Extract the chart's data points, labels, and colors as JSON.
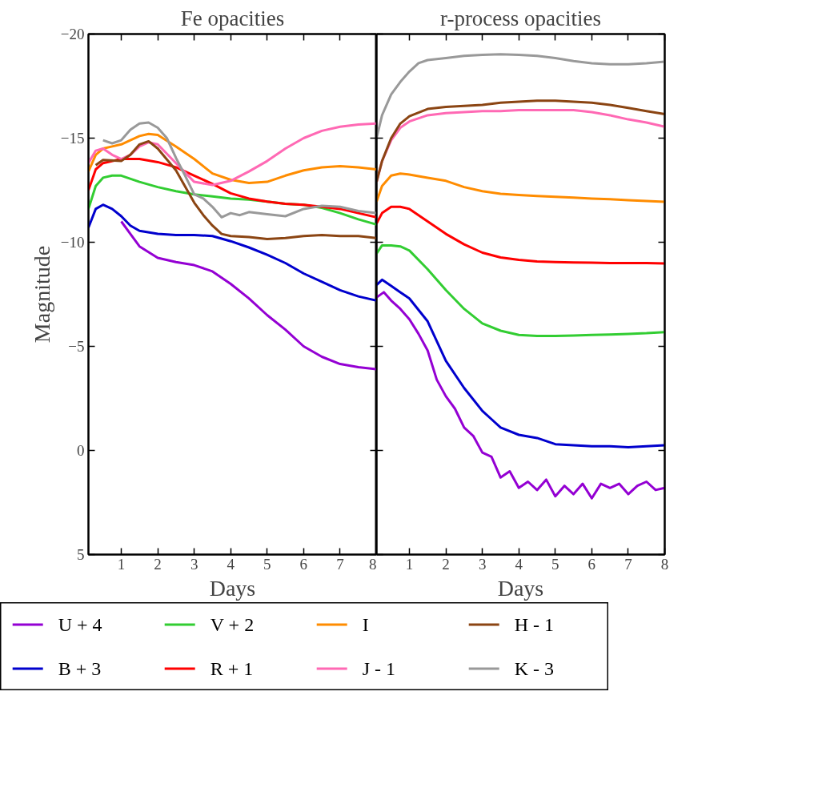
{
  "chart_data": [
    {
      "type": "line",
      "title": "Fe opacities",
      "xlabel": "Days",
      "ylabel": "Magnitude",
      "xlim": [
        0.1,
        8
      ],
      "xticks": [
        1,
        2,
        3,
        4,
        5,
        6,
        7,
        8
      ],
      "ylim": [
        5,
        -20
      ],
      "yticks": [
        {
          "value": -20,
          "label": "−20"
        },
        {
          "value": -15,
          "label": "−15"
        },
        {
          "value": -10,
          "label": "−10"
        },
        {
          "value": -5,
          "label": "−5"
        },
        {
          "value": 0,
          "label": "0"
        },
        {
          "value": 5,
          "label": "5"
        }
      ],
      "grid": false,
      "legend": "bottom",
      "line_style": "solid",
      "marker": "none",
      "series": [
        {
          "name": "U + 4",
          "color": "#9400d3",
          "x": [
            1,
            1.25,
            1.5,
            2,
            2.5,
            3,
            3.5,
            4,
            4.5,
            5,
            5.5,
            6,
            6.5,
            7,
            7.5,
            8
          ],
          "values": [
            -11.0,
            -10.4,
            -9.8,
            -9.25,
            -9.05,
            -8.9,
            -8.6,
            -8.0,
            -7.3,
            -6.5,
            -5.8,
            -5.0,
            -4.5,
            -4.15,
            -4.0,
            -3.9
          ]
        },
        {
          "name": "B + 3",
          "color": "#0000cd",
          "x": [
            0.1,
            0.3,
            0.5,
            0.75,
            1,
            1.25,
            1.5,
            2,
            2.5,
            3,
            3.5,
            4,
            4.5,
            5,
            5.5,
            6,
            6.5,
            7,
            7.5,
            8
          ],
          "values": [
            -10.7,
            -11.6,
            -11.8,
            -11.6,
            -11.25,
            -10.8,
            -10.55,
            -10.4,
            -10.35,
            -10.35,
            -10.3,
            -10.05,
            -9.75,
            -9.4,
            -9.0,
            -8.5,
            -8.1,
            -7.7,
            -7.4,
            -7.2
          ]
        },
        {
          "name": "V + 2",
          "color": "#32cd32",
          "x": [
            0.1,
            0.3,
            0.5,
            0.75,
            1,
            1.5,
            2,
            2.5,
            3,
            3.5,
            4,
            4.5,
            5,
            5.5,
            6,
            6.5,
            7,
            7.5,
            8
          ],
          "values": [
            -11.6,
            -12.7,
            -13.1,
            -13.2,
            -13.2,
            -12.9,
            -12.65,
            -12.45,
            -12.3,
            -12.2,
            -12.1,
            -12.05,
            -11.95,
            -11.85,
            -11.8,
            -11.65,
            -11.4,
            -11.1,
            -10.85
          ]
        },
        {
          "name": "R + 1",
          "color": "#ff0000",
          "x": [
            0.1,
            0.3,
            0.5,
            1,
            1.5,
            2,
            2.5,
            3,
            3.5,
            4,
            4.5,
            5,
            5.5,
            6,
            6.5,
            7,
            7.5,
            8
          ],
          "values": [
            -12.5,
            -13.5,
            -13.8,
            -14.0,
            -14.0,
            -13.85,
            -13.6,
            -13.2,
            -12.8,
            -12.35,
            -12.1,
            -11.95,
            -11.85,
            -11.8,
            -11.7,
            -11.6,
            -11.4,
            -11.2
          ]
        },
        {
          "name": "I",
          "color": "#ff8c00",
          "x": [
            0.1,
            0.3,
            0.5,
            0.75,
            1,
            1.5,
            1.75,
            2,
            2.5,
            3,
            3.5,
            4,
            4.5,
            5,
            5.5,
            6,
            6.5,
            7,
            7.5,
            8
          ],
          "values": [
            -13.4,
            -14.2,
            -14.5,
            -14.6,
            -14.7,
            -15.1,
            -15.2,
            -15.15,
            -14.6,
            -14.0,
            -13.3,
            -13.0,
            -12.85,
            -12.9,
            -13.2,
            -13.45,
            -13.6,
            -13.65,
            -13.6,
            -13.5
          ]
        },
        {
          "name": "J - 1",
          "color": "#ff69b4",
          "x": [
            0.1,
            0.3,
            0.5,
            0.75,
            1,
            1.25,
            1.5,
            1.75,
            2,
            2.5,
            3,
            3.5,
            4,
            4.5,
            5,
            5.5,
            6,
            6.5,
            7,
            7.5,
            8
          ],
          "values": [
            -13.8,
            -14.4,
            -14.5,
            -14.2,
            -14.0,
            -14.2,
            -14.6,
            -14.8,
            -14.7,
            -13.8,
            -12.9,
            -12.75,
            -12.95,
            -13.4,
            -13.9,
            -14.5,
            -15.0,
            -15.35,
            -15.55,
            -15.65,
            -15.7
          ]
        },
        {
          "name": "H - 1",
          "color": "#8b4513",
          "x": [
            0.3,
            0.5,
            1,
            1.25,
            1.5,
            1.75,
            2,
            2.5,
            3,
            3.25,
            3.5,
            3.75,
            4,
            4.5,
            5,
            5.5,
            6,
            6.5,
            7,
            7.5,
            8
          ],
          "values": [
            -13.7,
            -13.95,
            -13.9,
            -14.2,
            -14.7,
            -14.85,
            -14.5,
            -13.45,
            -11.9,
            -11.3,
            -10.8,
            -10.4,
            -10.3,
            -10.25,
            -10.15,
            -10.2,
            -10.3,
            -10.35,
            -10.3,
            -10.3,
            -10.2
          ]
        },
        {
          "name": "K - 3",
          "color": "#999999",
          "x": [
            0.5,
            0.75,
            1,
            1.25,
            1.5,
            1.75,
            2,
            2.25,
            2.5,
            2.75,
            3,
            3.25,
            3.5,
            3.75,
            4,
            4.25,
            4.5,
            5,
            5.5,
            6,
            6.5,
            7,
            7.5,
            8
          ],
          "values": [
            -14.9,
            -14.75,
            -14.9,
            -15.4,
            -15.7,
            -15.75,
            -15.5,
            -15.0,
            -14.05,
            -13.2,
            -12.3,
            -12.1,
            -11.7,
            -11.2,
            -11.4,
            -11.3,
            -11.45,
            -11.35,
            -11.25,
            -11.6,
            -11.75,
            -11.7,
            -11.5,
            -11.4
          ]
        }
      ]
    },
    {
      "type": "line",
      "title": "r-process opacities",
      "xlabel": "Days",
      "xlim": [
        0.1,
        8
      ],
      "xticks": [
        1,
        2,
        3,
        4,
        5,
        6,
        7,
        8
      ],
      "ylim": [
        5,
        -20
      ],
      "yticks": [
        {
          "value": -20,
          "label": null
        },
        {
          "value": -15,
          "label": null
        },
        {
          "value": -10,
          "label": null
        },
        {
          "value": -5,
          "label": null
        },
        {
          "value": 0,
          "label": null
        },
        {
          "value": 5,
          "label": null
        }
      ],
      "tick_labels": "x",
      "grid": false,
      "line_style": "solid",
      "marker": "none",
      "series": [
        {
          "color": "#9400d3",
          "x": [
            0.1,
            0.3,
            0.5,
            0.75,
            1,
            1.25,
            1.5,
            1.75,
            2,
            2.25,
            2.5,
            2.75,
            3,
            3.25,
            3.5,
            3.75,
            4,
            4.25,
            4.5,
            4.75,
            5,
            5.25,
            5.5,
            5.75,
            6,
            6.25,
            6.5,
            6.75,
            7,
            7.25,
            7.5,
            7.75,
            8
          ],
          "values": [
            -7.35,
            -7.6,
            -7.2,
            -6.8,
            -6.3,
            -5.6,
            -4.8,
            -3.4,
            -2.6,
            -2.0,
            -1.1,
            -0.7,
            0.1,
            0.3,
            1.3,
            1.0,
            1.8,
            1.5,
            1.9,
            1.4,
            2.2,
            1.7,
            2.1,
            1.6,
            2.3,
            1.6,
            1.8,
            1.6,
            2.1,
            1.7,
            1.5,
            1.9,
            1.8
          ]
        },
        {
          "color": "#0000cd",
          "x": [
            0.1,
            0.25,
            0.5,
            0.75,
            1,
            1.5,
            2,
            2.5,
            3,
            3.25,
            3.5,
            4,
            4.5,
            5,
            5.5,
            6,
            6.5,
            7,
            7.5,
            8
          ],
          "values": [
            -7.95,
            -8.2,
            -7.9,
            -7.6,
            -7.3,
            -6.2,
            -4.3,
            -3.0,
            -1.9,
            -1.5,
            -1.1,
            -0.75,
            -0.6,
            -0.3,
            -0.25,
            -0.2,
            -0.2,
            -0.15,
            -0.2,
            -0.25
          ]
        },
        {
          "color": "#32cd32",
          "x": [
            0.1,
            0.25,
            0.5,
            0.75,
            1,
            1.5,
            2,
            2.5,
            3,
            3.5,
            4,
            4.5,
            5,
            5.5,
            6,
            6.5,
            7,
            7.5,
            8
          ],
          "values": [
            -9.45,
            -9.85,
            -9.85,
            -9.8,
            -9.6,
            -8.7,
            -7.7,
            -6.8,
            -6.1,
            -5.75,
            -5.55,
            -5.5,
            -5.5,
            -5.52,
            -5.55,
            -5.57,
            -5.6,
            -5.63,
            -5.68
          ]
        },
        {
          "color": "#ff0000",
          "x": [
            0.1,
            0.25,
            0.5,
            0.75,
            1,
            1.5,
            2,
            2.5,
            3,
            3.5,
            4,
            4.5,
            5,
            5.5,
            6,
            6.5,
            7,
            7.5,
            8
          ],
          "values": [
            -10.9,
            -11.4,
            -11.7,
            -11.7,
            -11.6,
            -11.0,
            -10.4,
            -9.9,
            -9.5,
            -9.27,
            -9.15,
            -9.08,
            -9.05,
            -9.03,
            -9.02,
            -9.0,
            -9.0,
            -9.0,
            -8.98
          ]
        },
        {
          "color": "#ff8c00",
          "x": [
            0.1,
            0.25,
            0.5,
            0.75,
            1,
            1.5,
            2,
            2.5,
            3,
            3.5,
            4,
            4.5,
            5,
            5.5,
            6,
            6.5,
            7,
            7.5,
            8
          ],
          "values": [
            -11.95,
            -12.7,
            -13.2,
            -13.3,
            -13.25,
            -13.1,
            -12.95,
            -12.65,
            -12.45,
            -12.33,
            -12.27,
            -12.22,
            -12.18,
            -12.14,
            -12.1,
            -12.07,
            -12.02,
            -11.98,
            -11.94
          ]
        },
        {
          "color": "#ff69b4",
          "x": [
            0.1,
            0.25,
            0.5,
            0.75,
            1,
            1.5,
            2,
            2.5,
            3,
            3.5,
            4,
            4.5,
            5,
            5.5,
            6,
            6.5,
            7,
            7.5,
            8
          ],
          "values": [
            -12.9,
            -13.9,
            -14.9,
            -15.5,
            -15.8,
            -16.1,
            -16.2,
            -16.25,
            -16.3,
            -16.3,
            -16.35,
            -16.35,
            -16.35,
            -16.35,
            -16.25,
            -16.1,
            -15.9,
            -15.75,
            -15.55
          ]
        },
        {
          "color": "#8b4513",
          "x": [
            0.1,
            0.25,
            0.5,
            0.75,
            1,
            1.5,
            2,
            2.5,
            3,
            3.5,
            4,
            4.5,
            5,
            5.5,
            6,
            6.5,
            7,
            7.5,
            8
          ],
          "values": [
            -12.9,
            -13.9,
            -15.0,
            -15.7,
            -16.05,
            -16.4,
            -16.5,
            -16.55,
            -16.6,
            -16.7,
            -16.75,
            -16.8,
            -16.8,
            -16.75,
            -16.7,
            -16.6,
            -16.45,
            -16.3,
            -16.15
          ]
        },
        {
          "color": "#999999",
          "x": [
            0.1,
            0.25,
            0.5,
            0.75,
            1,
            1.25,
            1.5,
            2,
            2.5,
            3,
            3.5,
            4,
            4.5,
            5,
            5.5,
            6,
            6.5,
            7,
            7.5,
            8
          ],
          "values": [
            -15.0,
            -16.1,
            -17.1,
            -17.7,
            -18.2,
            -18.6,
            -18.75,
            -18.85,
            -18.95,
            -19.0,
            -19.03,
            -19.0,
            -18.95,
            -18.85,
            -18.7,
            -18.6,
            -18.55,
            -18.55,
            -18.6,
            -18.67
          ]
        }
      ]
    }
  ]
}
